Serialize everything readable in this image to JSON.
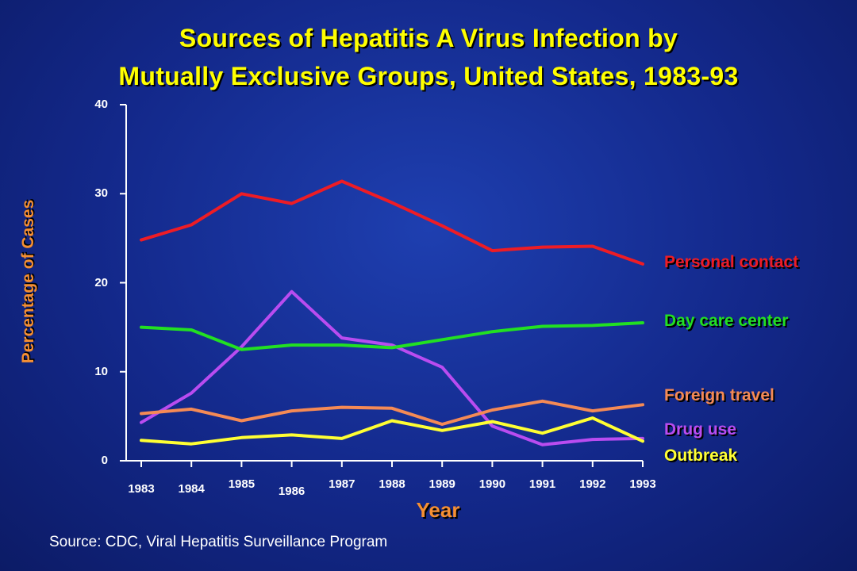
{
  "chart_data": {
    "type": "line",
    "title_line1": "Sources of Hepatitis A Virus Infection by",
    "title_line2": "Mutually Exclusive Groups, United States, 1983-93",
    "xlabel": "Year",
    "ylabel": "Percentage of Cases",
    "source": "Source: CDC, Viral Hepatitis Surveillance Program",
    "x": [
      "1983",
      "1984",
      "1985",
      "1986",
      "1987",
      "1988",
      "1989",
      "1990",
      "1991",
      "1992",
      "1993"
    ],
    "ylim": [
      0,
      40
    ],
    "yticks": [
      "0",
      "10",
      "20",
      "30",
      "40"
    ],
    "grid": false,
    "series": [
      {
        "name": "Personal contact",
        "color": "#ee1c25",
        "values": [
          24.8,
          26.5,
          30.0,
          28.9,
          31.4,
          29.0,
          26.4,
          23.6,
          24.0,
          24.1,
          22.1
        ]
      },
      {
        "name": "Day care center",
        "color": "#22e022",
        "values": [
          15.0,
          14.7,
          12.5,
          13.0,
          13.0,
          12.7,
          13.6,
          14.5,
          15.1,
          15.2,
          15.5
        ]
      },
      {
        "name": "Foreign travel",
        "color": "#f58a55",
        "values": [
          5.3,
          5.8,
          4.5,
          5.6,
          6.0,
          5.9,
          4.1,
          5.7,
          6.7,
          5.6,
          6.3
        ]
      },
      {
        "name": "Drug use",
        "color": "#b94cf0",
        "values": [
          4.3,
          7.6,
          12.8,
          19.0,
          13.8,
          13.0,
          10.5,
          3.9,
          1.8,
          2.4,
          2.5
        ]
      },
      {
        "name": "Outbreak",
        "color": "#ffff33",
        "values": [
          2.3,
          1.9,
          2.6,
          2.9,
          2.5,
          4.5,
          3.4,
          4.4,
          3.1,
          4.8,
          2.2
        ]
      }
    ]
  }
}
